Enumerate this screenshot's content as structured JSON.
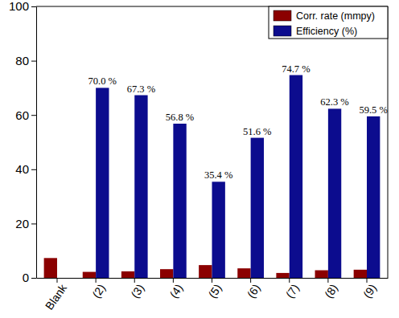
{
  "chart_data": {
    "type": "bar",
    "categories": [
      "Blank",
      "(2)",
      "(3)",
      "(4)",
      "(5)",
      "(6)",
      "(7)",
      "(8)",
      "(9)"
    ],
    "series": [
      {
        "name": "Corr. rate (mmpy)",
        "color": "#8b0000",
        "values": [
          7.3,
          2.2,
          2.4,
          3.2,
          4.7,
          3.5,
          1.8,
          2.8,
          3.0
        ]
      },
      {
        "name": "Efficiency (%)",
        "color": "#0c0c8e",
        "values": [
          null,
          70.0,
          67.3,
          56.8,
          35.4,
          51.6,
          74.7,
          62.3,
          59.5
        ],
        "value_labels": [
          null,
          "70.0 %",
          "67.3 %",
          "56.8 %",
          "35.4 %",
          "51.6 %",
          "74.7 %",
          "62.3 %",
          "59.5 %"
        ]
      }
    ],
    "ylim": [
      0,
      100
    ],
    "yticks": [
      0,
      20,
      40,
      60,
      80,
      100
    ],
    "legend": "top-right",
    "data_labels": true,
    "grid": false
  }
}
